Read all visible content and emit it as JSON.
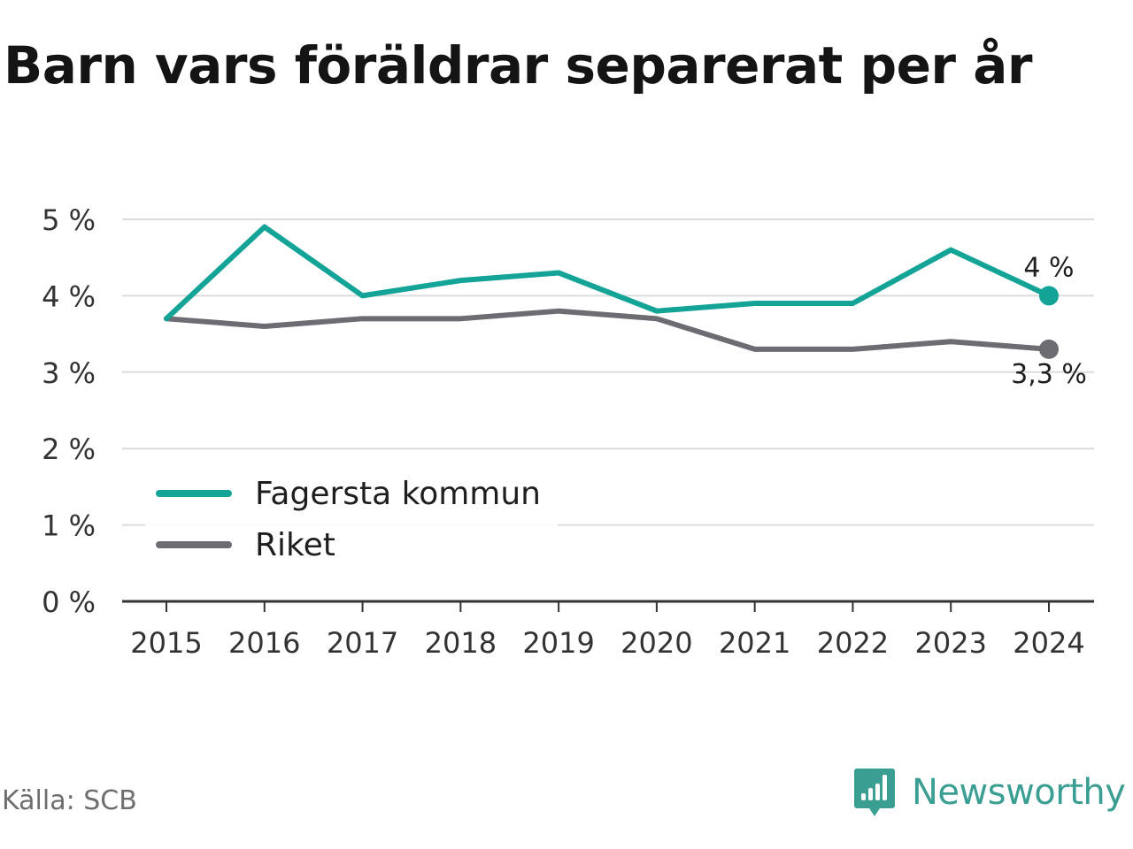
{
  "title": "Barn vars föräldrar separerat per år",
  "source": "Källa: SCB",
  "brand": {
    "name": "Newsworthy",
    "icon": "newsworthy-logo-icon",
    "color": "#3a9e92"
  },
  "chart_data": {
    "type": "line",
    "x": [
      2015,
      2016,
      2017,
      2018,
      2019,
      2020,
      2021,
      2022,
      2023,
      2024
    ],
    "y_ticks": [
      "0 %",
      "1 %",
      "2 %",
      "3 %",
      "4 %",
      "5 %"
    ],
    "ylim": [
      0,
      5
    ],
    "grid": true,
    "legend_position": "bottom-left",
    "series": [
      {
        "name": "Fagersta kommun",
        "color": "#13a397",
        "values": [
          3.7,
          4.9,
          4.0,
          4.2,
          4.3,
          3.8,
          3.9,
          3.9,
          4.6,
          4.0
        ],
        "end_label": "4 %"
      },
      {
        "name": "Riket",
        "color": "#6d6c73",
        "values": [
          3.7,
          3.6,
          3.7,
          3.7,
          3.8,
          3.7,
          3.3,
          3.3,
          3.4,
          3.3
        ],
        "end_label": "3,3 %"
      }
    ]
  }
}
